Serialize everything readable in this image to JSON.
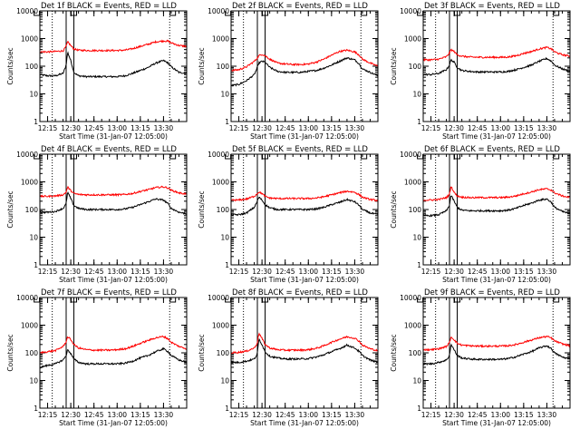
{
  "figure": {
    "type": "line",
    "yscale": "log",
    "ylabel": "Counts/sec",
    "xlabel": "Start Time (31-Jan-07 12:05:00)",
    "ylim": [
      1,
      10000
    ],
    "ytick_labels": [
      "10000",
      "1000",
      "100",
      "10",
      "1"
    ],
    "xtick_labels": [
      "12:15",
      "12:30",
      "12:45",
      "13:00",
      "13:15",
      "13:30"
    ],
    "x_range_minutes": [
      5,
      100
    ],
    "vertical_solid_lines": [
      22,
      27
    ],
    "vertical_dotted_lines": [
      13,
      89
    ],
    "top_marker_positions": [
      3,
      27,
      91
    ],
    "colors": {
      "events": "#000000",
      "lld": "#ff0000",
      "axis": "#000000"
    }
  },
  "chart_data": [
    {
      "type": "line",
      "title": "Det 1f BLACK = Events, RED = LLD",
      "x_min": [
        5,
        10,
        15,
        20,
        22,
        23,
        25,
        27,
        30,
        35,
        40,
        45,
        50,
        55,
        60,
        65,
        70,
        75,
        80,
        85,
        88,
        90,
        95,
        100
      ],
      "series": [
        {
          "name": "Events",
          "color": "#000000",
          "values": [
            50,
            45,
            45,
            55,
            110,
            320,
            160,
            60,
            45,
            42,
            42,
            42,
            42,
            42,
            45,
            55,
            70,
            90,
            130,
            160,
            130,
            95,
            60,
            55
          ]
        },
        {
          "name": "LLD",
          "color": "#ff0000",
          "values": [
            330,
            330,
            340,
            360,
            520,
            760,
            560,
            420,
            380,
            370,
            370,
            370,
            370,
            370,
            380,
            430,
            520,
            620,
            760,
            820,
            800,
            700,
            560,
            520
          ]
        }
      ]
    },
    {
      "type": "line",
      "title": "Det 2f BLACK = Events, RED = LLD",
      "x_min": [
        5,
        10,
        15,
        20,
        22,
        23,
        25,
        27,
        30,
        35,
        40,
        45,
        50,
        55,
        60,
        65,
        70,
        75,
        80,
        85,
        88,
        90,
        95,
        100
      ],
      "series": [
        {
          "name": "Events",
          "color": "#000000",
          "values": [
            20,
            22,
            30,
            50,
            90,
            130,
            150,
            140,
            90,
            65,
            60,
            60,
            60,
            65,
            70,
            85,
            110,
            150,
            200,
            170,
            120,
            80,
            60,
            45
          ]
        },
        {
          "name": "LLD",
          "color": "#ff0000",
          "values": [
            70,
            75,
            95,
            150,
            200,
            240,
            270,
            240,
            180,
            130,
            120,
            115,
            115,
            120,
            140,
            180,
            250,
            340,
            380,
            330,
            250,
            180,
            130,
            100
          ]
        }
      ]
    },
    {
      "type": "line",
      "title": "Det 3f BLACK = Events, RED = LLD",
      "x_min": [
        5,
        10,
        15,
        20,
        22,
        23,
        25,
        27,
        30,
        35,
        40,
        45,
        50,
        55,
        60,
        65,
        70,
        75,
        80,
        85,
        88,
        90,
        95,
        100
      ],
      "series": [
        {
          "name": "Events",
          "color": "#000000",
          "values": [
            50,
            50,
            55,
            75,
            110,
            170,
            140,
            90,
            70,
            65,
            62,
            62,
            62,
            62,
            65,
            75,
            90,
            110,
            150,
            190,
            150,
            110,
            80,
            65
          ]
        },
        {
          "name": "LLD",
          "color": "#ff0000",
          "values": [
            170,
            170,
            180,
            220,
            300,
            400,
            340,
            260,
            230,
            215,
            210,
            210,
            210,
            210,
            215,
            240,
            290,
            340,
            420,
            480,
            420,
            330,
            260,
            230
          ]
        }
      ]
    },
    {
      "type": "line",
      "title": "Det 4f BLACK = Events, RED = LLD",
      "x_min": [
        5,
        10,
        15,
        20,
        22,
        23,
        25,
        27,
        30,
        35,
        40,
        45,
        50,
        55,
        60,
        65,
        70,
        75,
        80,
        85,
        88,
        90,
        95,
        100
      ],
      "series": [
        {
          "name": "Events",
          "color": "#000000",
          "values": [
            80,
            80,
            85,
            110,
            160,
            420,
            250,
            140,
            110,
            100,
            100,
            100,
            100,
            100,
            105,
            120,
            150,
            190,
            240,
            220,
            160,
            110,
            80,
            70
          ]
        },
        {
          "name": "LLD",
          "color": "#ff0000",
          "values": [
            300,
            300,
            310,
            340,
            420,
            650,
            480,
            380,
            350,
            340,
            340,
            340,
            340,
            340,
            350,
            380,
            450,
            520,
            620,
            660,
            600,
            500,
            400,
            360
          ]
        }
      ]
    },
    {
      "type": "line",
      "title": "Det 5f BLACK = Events, RED = LLD",
      "x_min": [
        5,
        10,
        15,
        20,
        22,
        23,
        25,
        27,
        30,
        35,
        40,
        45,
        50,
        55,
        60,
        65,
        70,
        75,
        80,
        85,
        88,
        90,
        95,
        100
      ],
      "series": [
        {
          "name": "Events",
          "color": "#000000",
          "values": [
            65,
            65,
            75,
            120,
            200,
            280,
            220,
            150,
            115,
            100,
            100,
            100,
            100,
            100,
            105,
            120,
            150,
            180,
            230,
            190,
            140,
            100,
            75,
            65
          ]
        },
        {
          "name": "LLD",
          "color": "#ff0000",
          "values": [
            220,
            220,
            240,
            300,
            380,
            430,
            380,
            300,
            260,
            250,
            250,
            250,
            250,
            250,
            260,
            290,
            340,
            400,
            460,
            420,
            340,
            280,
            230,
            210
          ]
        }
      ]
    },
    {
      "type": "line",
      "title": "Det 6f BLACK = Events, RED = LLD",
      "x_min": [
        5,
        10,
        15,
        20,
        22,
        23,
        25,
        27,
        30,
        35,
        40,
        45,
        50,
        55,
        60,
        65,
        70,
        75,
        80,
        85,
        88,
        90,
        95,
        100
      ],
      "series": [
        {
          "name": "Events",
          "color": "#000000",
          "values": [
            60,
            60,
            65,
            90,
            140,
            330,
            200,
            120,
            95,
            90,
            90,
            90,
            90,
            90,
            95,
            110,
            140,
            170,
            220,
            240,
            180,
            120,
            85,
            70
          ]
        },
        {
          "name": "LLD",
          "color": "#ff0000",
          "values": [
            220,
            220,
            230,
            270,
            350,
            700,
            420,
            310,
            280,
            270,
            270,
            270,
            270,
            270,
            280,
            310,
            370,
            430,
            520,
            560,
            500,
            400,
            310,
            270
          ]
        }
      ]
    },
    {
      "type": "line",
      "title": "Det 7f BLACK = Events, RED = LLD",
      "x_min": [
        5,
        10,
        15,
        20,
        22,
        23,
        25,
        27,
        30,
        35,
        40,
        45,
        50,
        55,
        60,
        65,
        70,
        75,
        80,
        85,
        88,
        90,
        95,
        100
      ],
      "series": [
        {
          "name": "Events",
          "color": "#000000",
          "values": [
            30,
            35,
            40,
            55,
            80,
            130,
            95,
            60,
            45,
            40,
            40,
            40,
            40,
            40,
            42,
            50,
            65,
            80,
            110,
            140,
            110,
            80,
            55,
            45
          ]
        },
        {
          "name": "LLD",
          "color": "#ff0000",
          "values": [
            100,
            110,
            120,
            170,
            250,
            380,
            300,
            200,
            150,
            130,
            125,
            125,
            125,
            130,
            140,
            170,
            220,
            280,
            350,
            390,
            320,
            240,
            170,
            140
          ]
        }
      ]
    },
    {
      "type": "line",
      "title": "Det 8f BLACK = Events, RED = LLD",
      "x_min": [
        5,
        10,
        15,
        20,
        22,
        23,
        25,
        27,
        30,
        35,
        40,
        45,
        50,
        55,
        60,
        65,
        70,
        75,
        80,
        85,
        88,
        90,
        95,
        100
      ],
      "series": [
        {
          "name": "Events",
          "color": "#000000",
          "values": [
            45,
            45,
            50,
            60,
            90,
            320,
            200,
            110,
            75,
            65,
            60,
            60,
            60,
            62,
            70,
            85,
            110,
            140,
            190,
            150,
            110,
            80,
            55,
            45
          ]
        },
        {
          "name": "LLD",
          "color": "#ff0000",
          "values": [
            100,
            105,
            115,
            150,
            230,
            520,
            330,
            200,
            150,
            130,
            125,
            125,
            125,
            130,
            145,
            180,
            240,
            310,
            380,
            340,
            260,
            190,
            140,
            120
          ]
        }
      ]
    },
    {
      "type": "line",
      "title": "Det 9f BLACK = Events, RED = LLD",
      "x_min": [
        5,
        10,
        15,
        20,
        22,
        23,
        25,
        27,
        30,
        35,
        40,
        45,
        50,
        55,
        60,
        65,
        70,
        75,
        80,
        85,
        88,
        90,
        95,
        100
      ],
      "series": [
        {
          "name": "Events",
          "color": "#000000",
          "values": [
            40,
            40,
            45,
            55,
            80,
            200,
            130,
            80,
            65,
            60,
            58,
            58,
            58,
            58,
            62,
            72,
            90,
            110,
            150,
            180,
            140,
            100,
            70,
            60
          ]
        },
        {
          "name": "LLD",
          "color": "#ff0000",
          "values": [
            130,
            130,
            140,
            170,
            230,
            380,
            300,
            220,
            190,
            180,
            175,
            175,
            175,
            175,
            180,
            200,
            240,
            290,
            350,
            390,
            340,
            270,
            210,
            180
          ]
        }
      ]
    }
  ]
}
